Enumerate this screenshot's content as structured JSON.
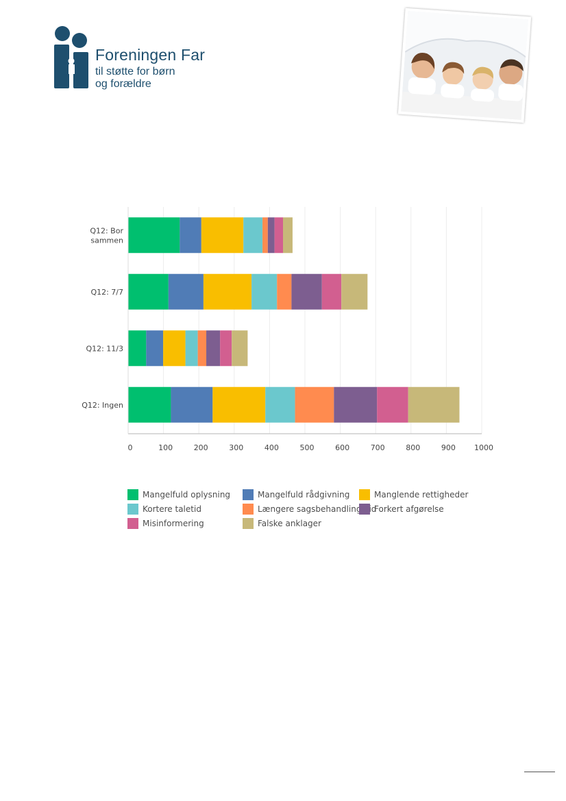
{
  "header": {
    "logo_title": "Foreningen Far",
    "logo_subtitle_1": "til støtte for børn",
    "logo_subtitle_2": "og forældre",
    "logo_icon": "family-logo-icon",
    "photo_icon": "family-photo",
    "brand_color": "#1e4f6e"
  },
  "chart_data": {
    "type": "bar",
    "orientation": "horizontal",
    "stacked": true,
    "categories": [
      "Q12: Bor sammen",
      "Q12: 7/7",
      "Q12: 11/3",
      "Q12: Ingen"
    ],
    "series": [
      {
        "name": "Mangelfuld oplysning",
        "color": "#00bf6f",
        "values": [
          146,
          114,
          51,
          121
        ]
      },
      {
        "name": "Mangelfuld rådgivning",
        "color": "#507cb6",
        "values": [
          61,
          99,
          48,
          118
        ]
      },
      {
        "name": "Manglende rettigheder",
        "color": "#f9be00",
        "values": [
          119,
          136,
          63,
          149
        ]
      },
      {
        "name": "Kortere taletid",
        "color": "#6bc8cd",
        "values": [
          54,
          72,
          35,
          84
        ]
      },
      {
        "name": "Længere sagsbehandlingstid",
        "color": "#ff8b4f",
        "values": [
          15,
          41,
          24,
          110
        ]
      },
      {
        "name": "Forkert afgørelse",
        "color": "#7d5e90",
        "values": [
          19,
          86,
          39,
          122
        ]
      },
      {
        "name": "Misinformering",
        "color": "#d25f90",
        "values": [
          24,
          55,
          33,
          88
        ]
      },
      {
        "name": "Falske anklager",
        "color": "#c7b879",
        "values": [
          27,
          74,
          45,
          145
        ]
      }
    ],
    "xlim": [
      0,
      1000
    ],
    "xticks": [
      0,
      100,
      200,
      300,
      400,
      500,
      600,
      700,
      800,
      900,
      1000
    ],
    "grid": true,
    "legend_position": "bottom",
    "title": "",
    "xlabel": "",
    "ylabel": ""
  }
}
